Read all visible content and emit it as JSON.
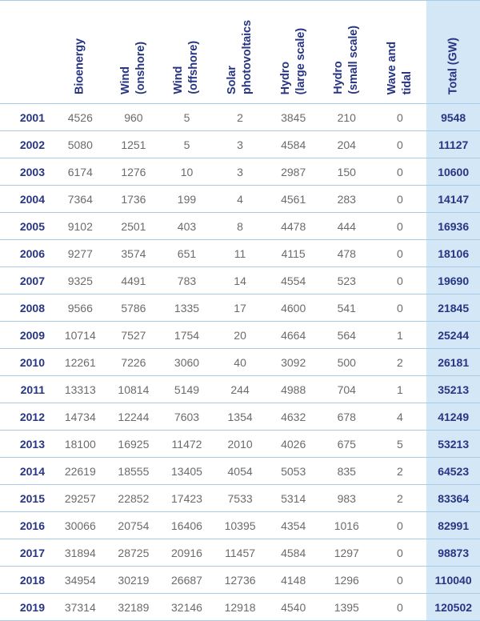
{
  "table": {
    "colors": {
      "header_text": "#273583",
      "body_text": "#6b6b6b",
      "year_text": "#273583",
      "total_text": "#273583",
      "total_background": "#d3e7f6",
      "row_border": "#a9cbe6"
    },
    "headers": [
      "",
      "Bioenergy",
      "Wind\n(onshore)",
      "Wind\n(offshore)",
      "Solar\nphotovoltaics",
      "Hydro\n(large scale)",
      "Hydro\n(small scale)",
      "Wave and\ntidal",
      "Total (GW)"
    ],
    "rows": [
      {
        "year": "2001",
        "bioenergy": "4526",
        "wind_onshore": "960",
        "wind_offshore": "5",
        "solar_pv": "2",
        "hydro_large": "3845",
        "hydro_small": "210",
        "wave_tidal": "0",
        "total": "9548"
      },
      {
        "year": "2002",
        "bioenergy": "5080",
        "wind_onshore": "1251",
        "wind_offshore": "5",
        "solar_pv": "3",
        "hydro_large": "4584",
        "hydro_small": "204",
        "wave_tidal": "0",
        "total": "11127"
      },
      {
        "year": "2003",
        "bioenergy": "6174",
        "wind_onshore": "1276",
        "wind_offshore": "10",
        "solar_pv": "3",
        "hydro_large": "2987",
        "hydro_small": "150",
        "wave_tidal": "0",
        "total": "10600"
      },
      {
        "year": "2004",
        "bioenergy": "7364",
        "wind_onshore": "1736",
        "wind_offshore": "199",
        "solar_pv": "4",
        "hydro_large": "4561",
        "hydro_small": "283",
        "wave_tidal": "0",
        "total": "14147"
      },
      {
        "year": "2005",
        "bioenergy": "9102",
        "wind_onshore": "2501",
        "wind_offshore": "403",
        "solar_pv": "8",
        "hydro_large": "4478",
        "hydro_small": "444",
        "wave_tidal": "0",
        "total": "16936"
      },
      {
        "year": "2006",
        "bioenergy": "9277",
        "wind_onshore": "3574",
        "wind_offshore": "651",
        "solar_pv": "11",
        "hydro_large": "4115",
        "hydro_small": "478",
        "wave_tidal": "0",
        "total": "18106"
      },
      {
        "year": "2007",
        "bioenergy": "9325",
        "wind_onshore": "4491",
        "wind_offshore": "783",
        "solar_pv": "14",
        "hydro_large": "4554",
        "hydro_small": "523",
        "wave_tidal": "0",
        "total": "19690"
      },
      {
        "year": "2008",
        "bioenergy": "9566",
        "wind_onshore": "5786",
        "wind_offshore": "1335",
        "solar_pv": "17",
        "hydro_large": "4600",
        "hydro_small": "541",
        "wave_tidal": "0",
        "total": "21845"
      },
      {
        "year": "2009",
        "bioenergy": "10714",
        "wind_onshore": "7527",
        "wind_offshore": "1754",
        "solar_pv": "20",
        "hydro_large": "4664",
        "hydro_small": "564",
        "wave_tidal": "1",
        "total": "25244"
      },
      {
        "year": "2010",
        "bioenergy": "12261",
        "wind_onshore": "7226",
        "wind_offshore": "3060",
        "solar_pv": "40",
        "hydro_large": "3092",
        "hydro_small": "500",
        "wave_tidal": "2",
        "total": "26181"
      },
      {
        "year": "2011",
        "bioenergy": "13313",
        "wind_onshore": "10814",
        "wind_offshore": "5149",
        "solar_pv": "244",
        "hydro_large": "4988",
        "hydro_small": "704",
        "wave_tidal": "1",
        "total": "35213"
      },
      {
        "year": "2012",
        "bioenergy": "14734",
        "wind_onshore": "12244",
        "wind_offshore": "7603",
        "solar_pv": "1354",
        "hydro_large": "4632",
        "hydro_small": "678",
        "wave_tidal": "4",
        "total": "41249"
      },
      {
        "year": "2013",
        "bioenergy": "18100",
        "wind_onshore": "16925",
        "wind_offshore": "11472",
        "solar_pv": "2010",
        "hydro_large": "4026",
        "hydro_small": "675",
        "wave_tidal": "5",
        "total": "53213"
      },
      {
        "year": "2014",
        "bioenergy": "22619",
        "wind_onshore": "18555",
        "wind_offshore": "13405",
        "solar_pv": "4054",
        "hydro_large": "5053",
        "hydro_small": "835",
        "wave_tidal": "2",
        "total": "64523"
      },
      {
        "year": "2015",
        "bioenergy": "29257",
        "wind_onshore": "22852",
        "wind_offshore": "17423",
        "solar_pv": "7533",
        "hydro_large": "5314",
        "hydro_small": "983",
        "wave_tidal": "2",
        "total": "83364"
      },
      {
        "year": "2016",
        "bioenergy": "30066",
        "wind_onshore": "20754",
        "wind_offshore": "16406",
        "solar_pv": "10395",
        "hydro_large": "4354",
        "hydro_small": "1016",
        "wave_tidal": "0",
        "total": "82991"
      },
      {
        "year": "2017",
        "bioenergy": "31894",
        "wind_onshore": "28725",
        "wind_offshore": "20916",
        "solar_pv": "11457",
        "hydro_large": "4584",
        "hydro_small": "1297",
        "wave_tidal": "0",
        "total": "98873"
      },
      {
        "year": "2018",
        "bioenergy": "34954",
        "wind_onshore": "30219",
        "wind_offshore": "26687",
        "solar_pv": "12736",
        "hydro_large": "4148",
        "hydro_small": "1296",
        "wave_tidal": "0",
        "total": "110040"
      },
      {
        "year": "2019",
        "bioenergy": "37314",
        "wind_onshore": "32189",
        "wind_offshore": "32146",
        "solar_pv": "12918",
        "hydro_large": "4540",
        "hydro_small": "1395",
        "wave_tidal": "0",
        "total": "120502"
      }
    ]
  }
}
